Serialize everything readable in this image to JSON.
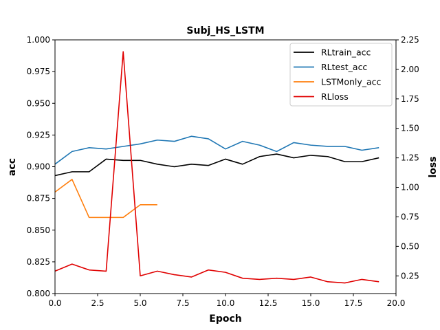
{
  "chart_data": {
    "type": "line",
    "title": "Subj_HS_LSTM",
    "xlabel": "Epoch",
    "ylabel": "acc",
    "y2label": "loss",
    "xlim": [
      0,
      20
    ],
    "ylim": [
      0.8,
      1.0
    ],
    "y2lim": [
      0.1,
      2.25
    ],
    "xticks": [
      "0.0",
      "2.5",
      "5.0",
      "7.5",
      "10.0",
      "12.5",
      "15.0",
      "17.5",
      "20.0"
    ],
    "yticks": [
      "0.800",
      "0.825",
      "0.850",
      "0.875",
      "0.900",
      "0.925",
      "0.950",
      "0.975",
      "1.000"
    ],
    "y2ticks": [
      "0.25",
      "0.50",
      "0.75",
      "1.00",
      "1.25",
      "1.50",
      "1.75",
      "2.00",
      "2.25"
    ],
    "grid": false,
    "legend_position": "top-right",
    "series": [
      {
        "name": "RLtrain_acc",
        "axis": "left",
        "color": "#000000",
        "x": [
          0,
          1,
          2,
          3,
          4,
          5,
          6,
          7,
          8,
          9,
          10,
          11,
          12,
          13,
          14,
          15,
          16,
          17,
          18,
          19
        ],
        "values": [
          0.893,
          0.896,
          0.896,
          0.906,
          0.905,
          0.905,
          0.902,
          0.9,
          0.902,
          0.901,
          0.906,
          0.902,
          0.908,
          0.91,
          0.907,
          0.909,
          0.908,
          0.904,
          0.904,
          0.907
        ]
      },
      {
        "name": "RLtest_acc",
        "axis": "left",
        "color": "#1f77b4",
        "x": [
          0,
          1,
          2,
          3,
          4,
          5,
          6,
          7,
          8,
          9,
          10,
          11,
          12,
          13,
          14,
          15,
          16,
          17,
          18,
          19
        ],
        "values": [
          0.902,
          0.912,
          0.915,
          0.914,
          0.916,
          0.918,
          0.921,
          0.92,
          0.924,
          0.922,
          0.914,
          0.92,
          0.917,
          0.912,
          0.919,
          0.917,
          0.916,
          0.916,
          0.913,
          0.915
        ]
      },
      {
        "name": "LSTMonly_acc",
        "axis": "left",
        "color": "#ff7f0e",
        "x": [
          0,
          1,
          2,
          3,
          4,
          5,
          6
        ],
        "values": [
          0.88,
          0.89,
          0.86,
          0.86,
          0.86,
          0.87,
          0.87
        ]
      },
      {
        "name": "RLloss",
        "axis": "right",
        "color": "#e00000",
        "x": [
          0,
          1,
          2,
          3,
          4,
          5,
          6,
          7,
          8,
          9,
          10,
          11,
          12,
          13,
          14,
          15,
          16,
          17,
          18,
          19
        ],
        "values": [
          0.29,
          0.35,
          0.3,
          0.29,
          2.15,
          0.25,
          0.29,
          0.26,
          0.24,
          0.3,
          0.28,
          0.23,
          0.22,
          0.23,
          0.22,
          0.24,
          0.2,
          0.19,
          0.22,
          0.2
        ]
      }
    ]
  }
}
